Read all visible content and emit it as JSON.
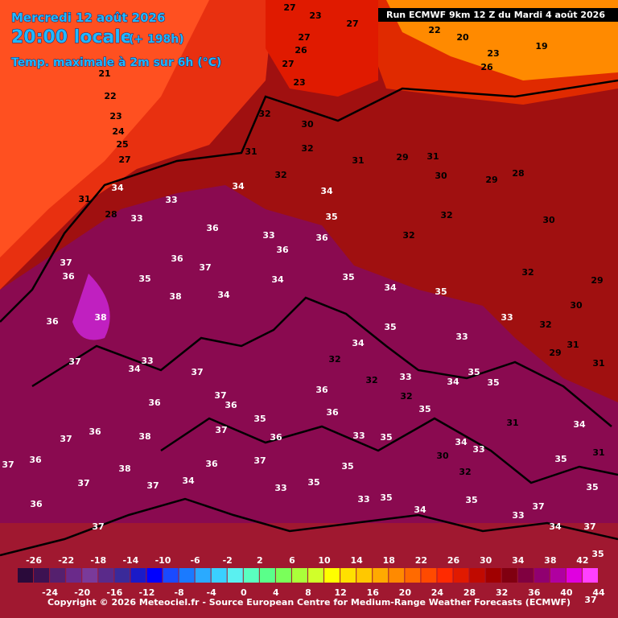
{
  "header": {
    "date": "Mercredi 12 août 2026",
    "time": "20:00 locale",
    "lead": "(+ 198h)",
    "parameter": "Temp. maximale à 2m sur 6h (°C)",
    "run": "Run ECMWF 9km 12 Z du Mardi 4 août 2026"
  },
  "map_labels": [
    27,
    23,
    27,
    27,
    26,
    27,
    23,
    22,
    20,
    19,
    23,
    26,
    21,
    22,
    23,
    24,
    25,
    27,
    31,
    28,
    32,
    30,
    32,
    31,
    32,
    34,
    34,
    33,
    34,
    33,
    36,
    35,
    33,
    36,
    36,
    31,
    29,
    31,
    30,
    32,
    32,
    29,
    28,
    30,
    32,
    29,
    30,
    36,
    37,
    35,
    37,
    36,
    38,
    38,
    34,
    34,
    35,
    34,
    35,
    35,
    34,
    33,
    32,
    33,
    29,
    31,
    31,
    36,
    37,
    33,
    34,
    36,
    37,
    37,
    36,
    35,
    36,
    36,
    32,
    32,
    33,
    32,
    35,
    34,
    35,
    35,
    31,
    34,
    36,
    38,
    37,
    36,
    37,
    38,
    37,
    36,
    33,
    35,
    34,
    30,
    33,
    32,
    35,
    31,
    37,
    36,
    37,
    37,
    34,
    36,
    37,
    33,
    35,
    35,
    33,
    35,
    34,
    35,
    37,
    33,
    34,
    35,
    37,
    35,
    37
  ],
  "colorbar": {
    "colors": [
      "#2a0a3a",
      "#3d1252",
      "#55206e",
      "#6a2a8a",
      "#7a3a9a",
      "#5a2a8a",
      "#3a2a9a",
      "#1a1ac8",
      "#0000ff",
      "#1a4aff",
      "#1a7aff",
      "#2aaaff",
      "#3ad0ff",
      "#5af0f0",
      "#5affc0",
      "#5aff8a",
      "#7aff5a",
      "#aaff3a",
      "#d0ff2a",
      "#ffff00",
      "#ffe000",
      "#ffc800",
      "#ffaa00",
      "#ff8a00",
      "#ff6a00",
      "#ff4a00",
      "#ff2a00",
      "#e01a00",
      "#c00a00",
      "#a00000",
      "#800010",
      "#800040",
      "#900070",
      "#b000a0",
      "#e000e0",
      "#ff40ff"
    ],
    "top_labels": [
      -26,
      -22,
      -18,
      -14,
      -10,
      -6,
      -2,
      2,
      6,
      10,
      14,
      18,
      22,
      26,
      30,
      34,
      38,
      42
    ],
    "bottom_labels": [
      -24,
      -20,
      -16,
      -12,
      -8,
      -4,
      0,
      4,
      8,
      12,
      16,
      20,
      24,
      28,
      32,
      36,
      40,
      44
    ]
  },
  "copyright": "Copyright © 2026 Meteociel.fr - Source European Centre for Medium-Range Weather Forecasts (ECMWF)"
}
